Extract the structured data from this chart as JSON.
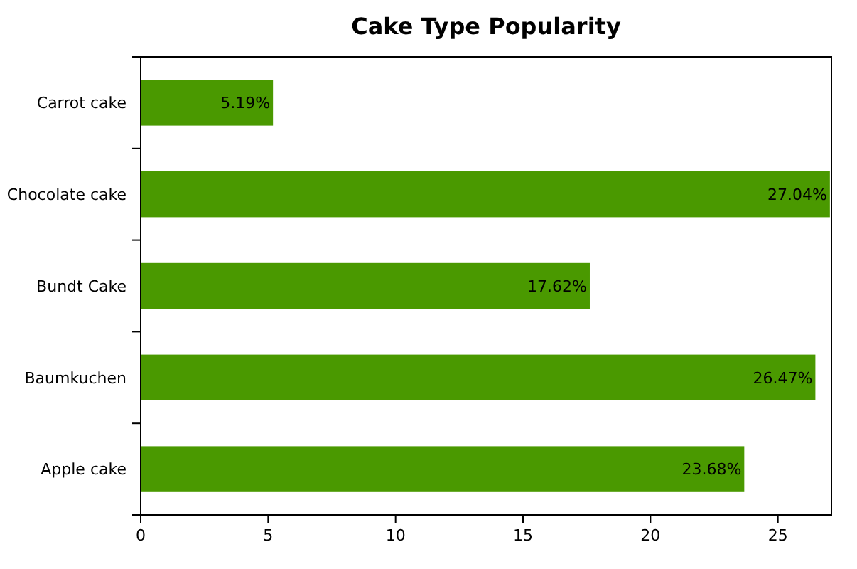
{
  "chart_data": {
    "type": "bar",
    "orientation": "horizontal",
    "title": "Cake Type Popularity",
    "categories": [
      "Carrot cake",
      "Chocolate cake",
      "Bundt Cake",
      "Baumkuchen",
      "Apple cake"
    ],
    "values": [
      5.19,
      27.04,
      17.62,
      26.47,
      23.68
    ],
    "value_labels": [
      "5.19%",
      "27.04%",
      "17.62%",
      "26.47%",
      "23.68%"
    ],
    "color": "#4a9900",
    "xlim": [
      0,
      27.1
    ],
    "xticks": [
      0,
      5,
      10,
      15,
      20,
      25
    ],
    "grid": false
  }
}
